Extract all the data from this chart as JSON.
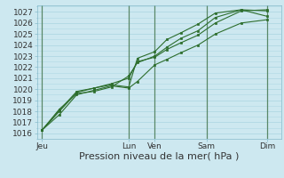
{
  "bg_color": "#cde8f0",
  "plot_bg_color": "#cde8f0",
  "grid_color": "#b0d8e4",
  "line_color": "#2d6e2d",
  "marker_color": "#2d6e2d",
  "xlabel": "Pression niveau de la mer( hPa )",
  "ylim": [
    1015.5,
    1027.6
  ],
  "yticks": [
    1016,
    1017,
    1018,
    1019,
    1020,
    1021,
    1022,
    1023,
    1024,
    1025,
    1026,
    1027
  ],
  "day_labels": [
    "Jeu",
    "Lun",
    "Ven",
    "Sam",
    "Dim"
  ],
  "day_x_positions": [
    0.0,
    5.0,
    6.5,
    9.5,
    13.0
  ],
  "vline_positions": [
    0.0,
    5.0,
    6.5,
    9.5,
    13.0
  ],
  "xlim": [
    -0.3,
    13.8
  ],
  "series": [
    [
      [
        0,
        1,
        2,
        3,
        4,
        5,
        5.5,
        6.5,
        7.2,
        8.0,
        9.0,
        10.0,
        11.5,
        13.0
      ],
      [
        1016.3,
        1017.7,
        1019.5,
        1019.9,
        1020.3,
        1020.1,
        1020.7,
        1022.2,
        1022.7,
        1023.3,
        1024.0,
        1025.0,
        1026.0,
        1026.3
      ]
    ],
    [
      [
        0,
        1,
        2,
        3,
        4,
        5,
        5.5,
        6.5,
        7.2,
        8.0,
        9.0,
        10.0,
        11.5,
        13.0
      ],
      [
        1016.3,
        1018.0,
        1019.7,
        1020.1,
        1020.5,
        1021.0,
        1022.5,
        1022.9,
        1023.6,
        1024.2,
        1024.9,
        1026.0,
        1027.1,
        1027.2
      ]
    ],
    [
      [
        0,
        1,
        2,
        3,
        4,
        5,
        5.5,
        6.5,
        7.2,
        8.0,
        9.0,
        10.0,
        11.5,
        13.0
      ],
      [
        1016.3,
        1018.2,
        1019.6,
        1019.8,
        1020.2,
        1021.2,
        1022.4,
        1023.0,
        1023.8,
        1024.6,
        1025.3,
        1026.5,
        1027.2,
        1027.1
      ]
    ],
    [
      [
        0,
        1,
        2,
        3,
        4,
        5,
        5.5,
        6.5,
        7.2,
        8.0,
        9.0,
        10.0,
        11.5,
        13.0
      ],
      [
        1016.3,
        1018.1,
        1019.8,
        1020.1,
        1020.4,
        1020.2,
        1022.8,
        1023.4,
        1024.5,
        1025.1,
        1025.9,
        1026.9,
        1027.2,
        1026.6
      ]
    ]
  ],
  "font_size": 7.5,
  "tick_font_size": 6.5,
  "xlabel_font_size": 8.0
}
